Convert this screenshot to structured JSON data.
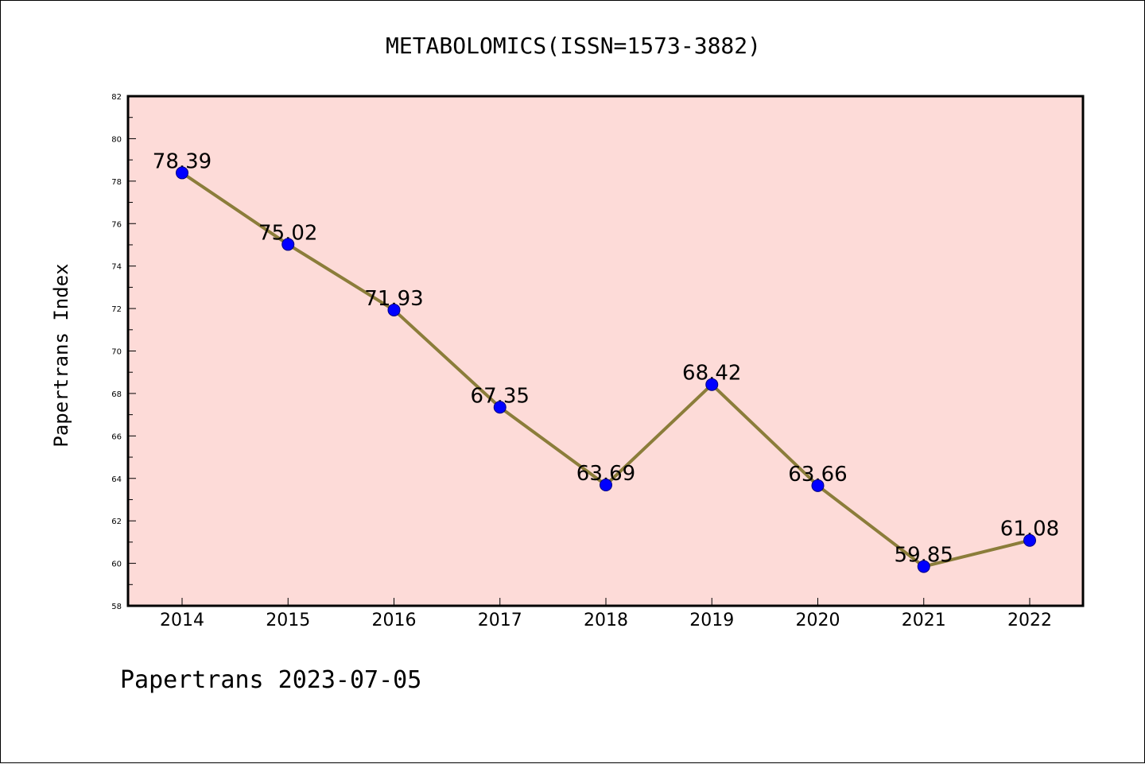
{
  "chart_data": {
    "type": "line",
    "title": "METABOLOMICS(ISSN=1573-3882)",
    "xlabel": "",
    "ylabel": "Papertrans Index",
    "categories": [
      "2014",
      "2015",
      "2016",
      "2017",
      "2018",
      "2019",
      "2020",
      "2021",
      "2022"
    ],
    "series": [
      {
        "values": [
          78.39,
          75.02,
          71.93,
          67.35,
          63.69,
          68.42,
          63.66,
          59.85,
          61.08
        ],
        "data_labels": [
          "78.39",
          "75.02",
          "71.93",
          "67.35",
          "63.69",
          "68.42",
          "63.66",
          "59.85",
          "61.08"
        ]
      }
    ],
    "ylim": [
      58,
      82
    ],
    "yticks": [
      "58",
      "60",
      "62",
      "64",
      "66",
      "68",
      "70",
      "72",
      "74",
      "76",
      "78",
      "80",
      "82"
    ],
    "grid": false,
    "legend": "none",
    "colors": {
      "plot_background": "#fddbd8",
      "line": "#8b7d3a",
      "marker": "#0000ff",
      "marker_edge": "#000080"
    }
  },
  "footer": "Papertrans 2023-07-05"
}
